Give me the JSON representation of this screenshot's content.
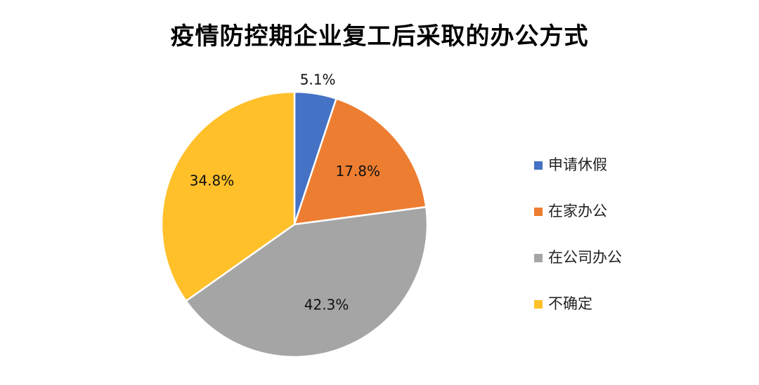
{
  "chart_data": {
    "type": "pie",
    "title": "疫情防控期企业复工后采取的办公方式",
    "categories": [
      "申请休假",
      "在家办公",
      "在公司办公",
      "不确定"
    ],
    "values": [
      5.1,
      17.8,
      42.3,
      34.8
    ],
    "data_labels": [
      "5.1%",
      "17.8%",
      "42.3%",
      "34.8%"
    ],
    "colors": [
      "#4472C4",
      "#ED7D31",
      "#A5A5A5",
      "#FFC02A"
    ],
    "start_angle_deg": 0,
    "direction": "clockwise",
    "legend_position": "right"
  }
}
